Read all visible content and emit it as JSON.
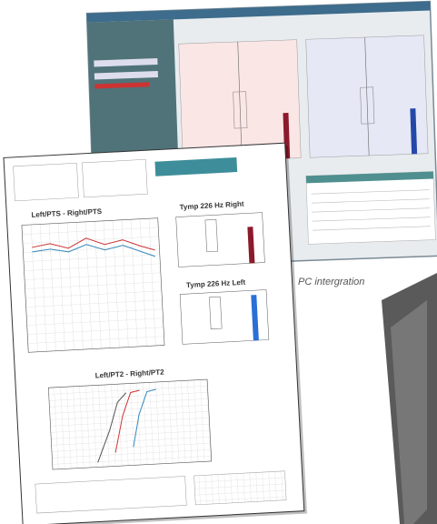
{
  "caption": "PC intergration",
  "report": {
    "audiogram_title": "Left/PTS - Right/PTS",
    "tymp_right_title": "Tymp 226 Hz Right",
    "tymp_left_title": "Tymp 226 Hz Left",
    "io_title": "Left/PT2 - Right/PT2"
  }
}
